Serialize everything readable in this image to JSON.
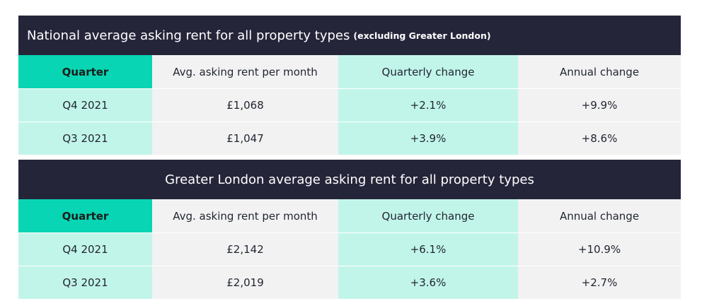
{
  "national": {
    "title": "National average asking rent for all property types",
    "title_note": "(excluding Greater London)",
    "headers": [
      "Quarter",
      "Avg. asking rent per month",
      "Quarterly change",
      "Annual change"
    ],
    "rows": [
      [
        "Q4 2021",
        "£1,068",
        "+2.1%",
        "+9.9%"
      ],
      [
        "Q3 2021",
        "£1,047",
        "+3.9%",
        "+8.6%"
      ]
    ]
  },
  "london": {
    "title": "Greater London average asking rent for all property types",
    "headers": [
      "Quarter",
      "Avg. asking rent per month",
      "Quarterly change",
      "Annual change"
    ],
    "rows": [
      [
        "Q4 2021",
        "£2,142",
        "+6.1%",
        "+10.9%"
      ],
      [
        "Q3 2021",
        "£2,019",
        "+3.6%",
        "+2.7%"
      ]
    ]
  },
  "colors": {
    "title_bg": "#25253a",
    "accent": "#08d5b3",
    "accent_light": "#c2f5ea",
    "neutral": "#f2f2f2"
  }
}
